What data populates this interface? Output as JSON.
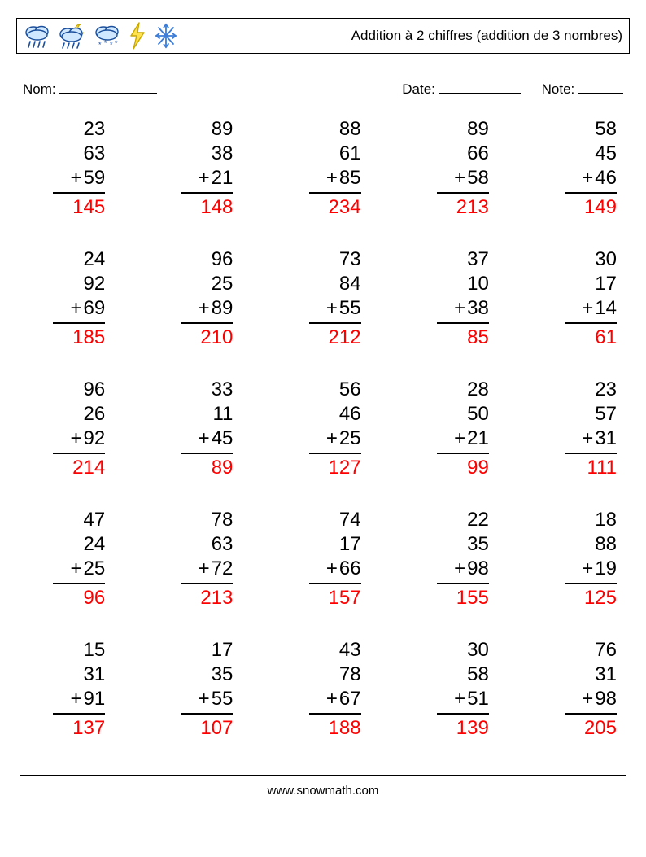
{
  "header": {
    "title": "Addition à 2 chiffres (addition de 3 nombres)",
    "icons": [
      "rain-cloud",
      "night-rain-cloud",
      "snow-cloud",
      "lightning",
      "snowflake"
    ]
  },
  "meta": {
    "name_label": "Nom:",
    "date_label": "Date:",
    "note_label": "Note:"
  },
  "style": {
    "operand_color": "#000000",
    "answer_color": "#ff0000",
    "border_color": "#000000",
    "font_size_problem": 24,
    "font_size_title": 17,
    "cols": 5,
    "rows": 5,
    "op_symbol": "+"
  },
  "problems": [
    {
      "a": 23,
      "b": 63,
      "c": 59,
      "ans": 145
    },
    {
      "a": 89,
      "b": 38,
      "c": 21,
      "ans": 148
    },
    {
      "a": 88,
      "b": 61,
      "c": 85,
      "ans": 234
    },
    {
      "a": 89,
      "b": 66,
      "c": 58,
      "ans": 213
    },
    {
      "a": 58,
      "b": 45,
      "c": 46,
      "ans": 149
    },
    {
      "a": 24,
      "b": 92,
      "c": 69,
      "ans": 185
    },
    {
      "a": 96,
      "b": 25,
      "c": 89,
      "ans": 210
    },
    {
      "a": 73,
      "b": 84,
      "c": 55,
      "ans": 212
    },
    {
      "a": 37,
      "b": 10,
      "c": 38,
      "ans": 85
    },
    {
      "a": 30,
      "b": 17,
      "c": 14,
      "ans": 61
    },
    {
      "a": 96,
      "b": 26,
      "c": 92,
      "ans": 214
    },
    {
      "a": 33,
      "b": 11,
      "c": 45,
      "ans": 89
    },
    {
      "a": 56,
      "b": 46,
      "c": 25,
      "ans": 127
    },
    {
      "a": 28,
      "b": 50,
      "c": 21,
      "ans": 99
    },
    {
      "a": 23,
      "b": 57,
      "c": 31,
      "ans": 111
    },
    {
      "a": 47,
      "b": 24,
      "c": 25,
      "ans": 96
    },
    {
      "a": 78,
      "b": 63,
      "c": 72,
      "ans": 213
    },
    {
      "a": 74,
      "b": 17,
      "c": 66,
      "ans": 157
    },
    {
      "a": 22,
      "b": 35,
      "c": 98,
      "ans": 155
    },
    {
      "a": 18,
      "b": 88,
      "c": 19,
      "ans": 125
    },
    {
      "a": 15,
      "b": 31,
      "c": 91,
      "ans": 137
    },
    {
      "a": 17,
      "b": 35,
      "c": 55,
      "ans": 107
    },
    {
      "a": 43,
      "b": 78,
      "c": 67,
      "ans": 188
    },
    {
      "a": 30,
      "b": 58,
      "c": 51,
      "ans": 139
    },
    {
      "a": 76,
      "b": 31,
      "c": 98,
      "ans": 205
    }
  ],
  "footer": {
    "text": "www.snowmath.com"
  }
}
